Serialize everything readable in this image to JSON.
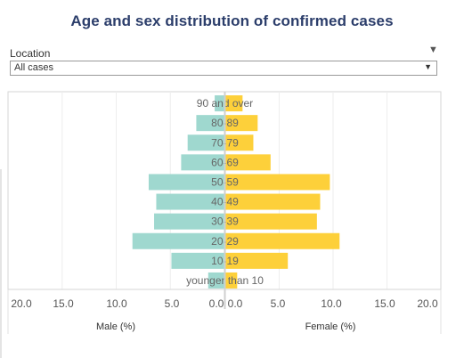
{
  "title": "Age and sex distribution of confirmed cases",
  "filter": {
    "label": "Location",
    "value": "All cases"
  },
  "colors": {
    "male": "#9fd8cf",
    "female": "#fdd03a",
    "title": "#2c3e6b"
  },
  "chart_data": {
    "type": "bar",
    "orientation": "horizontal",
    "subtype": "population-pyramid",
    "categories": [
      "90 and over",
      "80-89",
      "70-79",
      "60-69",
      "50-59",
      "40-49",
      "30-39",
      "20-29",
      "10-19",
      "younger than 10"
    ],
    "series": [
      {
        "name": "Male (%)",
        "values": [
          0.9,
          2.6,
          3.4,
          4.0,
          7.0,
          6.3,
          6.5,
          8.5,
          4.9,
          1.5
        ]
      },
      {
        "name": "Female (%)",
        "values": [
          1.6,
          3.0,
          2.6,
          4.2,
          9.7,
          8.8,
          8.5,
          10.6,
          5.8,
          1.1
        ]
      }
    ],
    "axes": {
      "left": {
        "title": "Male (%)",
        "ticks": [
          "20.0",
          "15.0",
          "10.0",
          "5.0",
          "0.0"
        ],
        "range": [
          20,
          0
        ]
      },
      "right": {
        "title": "Female (%)",
        "ticks": [
          "0.0",
          "5.0",
          "10.0",
          "15.0",
          "20.0"
        ],
        "range": [
          0,
          20
        ]
      }
    },
    "grid": true,
    "legend": "none"
  }
}
